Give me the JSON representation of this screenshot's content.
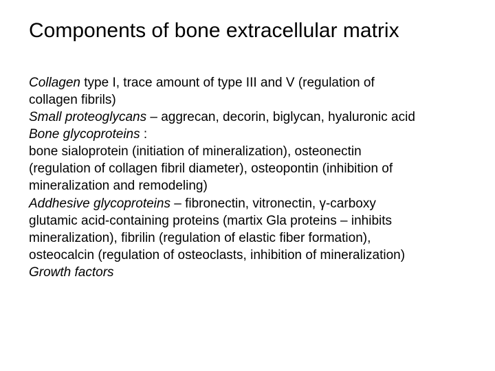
{
  "title": "Components of bone extracellular matrix",
  "lines": {
    "l1a": "Collagen",
    "l1b": " type I, trace amount of type III and V (regulation of",
    "l2": "collagen fibrils)",
    "l3a": "Small proteoglycans",
    "l3b": " – aggrecan, decorin, biglycan, hyaluronic acid",
    "l4a": "Bone glycoproteins",
    "l4b": " :",
    "l5": "bone sialoprotein (initiation of mineralization), osteonectin",
    "l6": "(regulation of collagen fibril diameter), osteopontin (inhibition of",
    "l7": "mineralization and remodeling)",
    "l8a": "Addhesive glycoproteins",
    "l8b": " – fibronectin, vitronectin, ",
    "l8c": "γ",
    "l8d": "-carboxy",
    "l9": "glutamic acid-containing proteins (martix Gla proteins – inhibits",
    "l10": "mineralization), fibrilin (regulation of elastic fiber formation),",
    "l11": "osteocalcin (regulation of osteoclasts, inhibition of mineralization)",
    "l12": "Growth factors"
  }
}
